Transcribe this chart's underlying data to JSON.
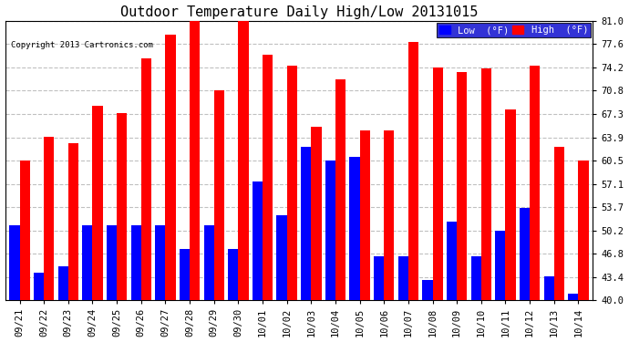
{
  "title": "Outdoor Temperature Daily High/Low 20131015",
  "copyright": "Copyright 2013 Cartronics.com",
  "dates": [
    "09/21",
    "09/22",
    "09/23",
    "09/24",
    "09/25",
    "09/26",
    "09/27",
    "09/28",
    "09/29",
    "09/30",
    "10/01",
    "10/02",
    "10/03",
    "10/04",
    "10/05",
    "10/06",
    "10/07",
    "10/08",
    "10/09",
    "10/10",
    "10/11",
    "10/12",
    "10/13",
    "10/14"
  ],
  "highs": [
    60.5,
    64.0,
    63.0,
    68.5,
    67.5,
    75.5,
    79.0,
    81.0,
    70.8,
    81.5,
    76.0,
    74.5,
    65.5,
    72.5,
    65.0,
    65.0,
    78.0,
    74.2,
    73.5,
    74.0,
    68.0,
    74.5,
    62.5,
    60.5
  ],
  "lows": [
    51.0,
    44.0,
    45.0,
    51.0,
    51.0,
    51.0,
    51.0,
    47.5,
    51.0,
    47.5,
    57.5,
    52.5,
    62.5,
    60.5,
    61.0,
    46.5,
    46.5,
    43.0,
    51.5,
    46.5,
    50.2,
    53.5,
    43.5,
    41.0
  ],
  "ylim": [
    40.0,
    81.0
  ],
  "yticks": [
    40.0,
    43.4,
    46.8,
    50.2,
    53.7,
    57.1,
    60.5,
    63.9,
    67.3,
    70.8,
    74.2,
    77.6,
    81.0
  ],
  "high_color": "#ff0000",
  "low_color": "#0000ff",
  "bg_color": "#ffffff",
  "grid_color": "#c0c0c0",
  "title_fontsize": 11,
  "legend_low_label": "Low  (°F)",
  "legend_high_label": "High  (°F)",
  "legend_bg": "#0000cc"
}
